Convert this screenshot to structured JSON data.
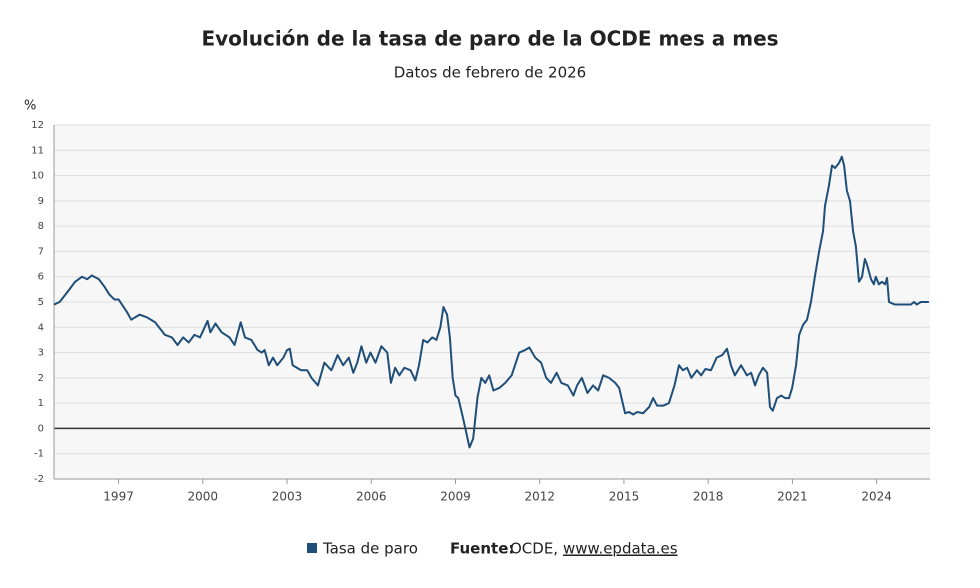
{
  "chart_data": {
    "type": "line",
    "title": "Evolución de la tasa de paro de la OCDE mes a mes",
    "subtitle": "Datos de febrero de 2026",
    "y_label": "%",
    "source_label": "Fuente:",
    "source_text": "OCDE,",
    "source_link": "www.epdata.es",
    "xlim": [
      1994.7,
      2025.9
    ],
    "xticks": [
      1997,
      2000,
      2003,
      2006,
      2009,
      2012,
      2015,
      2018,
      2021,
      2024
    ],
    "ylim": [
      -2,
      12
    ],
    "yticks": [
      -2,
      -1,
      0,
      1,
      2,
      3,
      4,
      5,
      6,
      7,
      8,
      9,
      10,
      11,
      12
    ],
    "grid": true,
    "x": [
      1994.7,
      1994.9,
      1995.25,
      1995.45,
      1995.7,
      1995.88,
      1996.05,
      1996.3,
      1996.5,
      1996.67,
      1996.85,
      1997.0,
      1997.3,
      1997.45,
      1997.75,
      1998.0,
      1998.3,
      1998.65,
      1998.9,
      1999.1,
      1999.3,
      1999.5,
      1999.7,
      1999.9,
      2000.17,
      2000.27,
      2000.45,
      2000.67,
      2000.95,
      2001.13,
      2001.35,
      2001.5,
      2001.73,
      2001.95,
      2002.1,
      2002.2,
      2002.35,
      2002.5,
      2002.65,
      2002.87,
      2003.0,
      2003.1,
      2003.2,
      2003.5,
      2003.72,
      2003.87,
      2004.1,
      2004.33,
      2004.58,
      2004.8,
      2005.0,
      2005.2,
      2005.36,
      2005.5,
      2005.65,
      2005.82,
      2005.97,
      2006.15,
      2006.36,
      2006.57,
      2006.7,
      2006.85,
      2007.0,
      2007.18,
      2007.4,
      2007.57,
      2007.7,
      2007.85,
      2008.0,
      2008.17,
      2008.32,
      2008.46,
      2008.57,
      2008.7,
      2008.8,
      2008.9,
      2009.0,
      2009.1,
      2009.25,
      2009.35,
      2009.5,
      2009.63,
      2009.78,
      2009.92,
      2010.06,
      2010.2,
      2010.35,
      2010.56,
      2010.77,
      2011.0,
      2011.27,
      2011.48,
      2011.63,
      2011.84,
      2012.05,
      2012.23,
      2012.4,
      2012.6,
      2012.77,
      2013.0,
      2013.2,
      2013.33,
      2013.5,
      2013.7,
      2013.9,
      2014.08,
      2014.26,
      2014.47,
      2014.69,
      2014.83,
      2015.04,
      2015.18,
      2015.33,
      2015.47,
      2015.68,
      2015.9,
      2016.04,
      2016.18,
      2016.4,
      2016.6,
      2016.8,
      2016.96,
      2017.1,
      2017.25,
      2017.4,
      2017.6,
      2017.75,
      2017.9,
      2018.1,
      2018.3,
      2018.5,
      2018.67,
      2018.81,
      2018.95,
      2019.17,
      2019.38,
      2019.53,
      2019.67,
      2019.8,
      2019.95,
      2020.1,
      2020.2,
      2020.3,
      2020.45,
      2020.6,
      2020.74,
      2020.88,
      2020.99,
      2021.13,
      2021.24,
      2021.38,
      2021.52,
      2021.66,
      2021.8,
      2021.95,
      2022.09,
      2022.16,
      2022.3,
      2022.41,
      2022.52,
      2022.66,
      2022.76,
      2022.84,
      2022.94,
      2023.05,
      2023.16,
      2023.26,
      2023.37,
      2023.48,
      2023.58,
      2023.65,
      2023.8,
      2023.9,
      2023.97,
      2024.08,
      2024.19,
      2024.3,
      2024.37,
      2024.44,
      2024.65,
      2025.22,
      2025.33,
      2025.43,
      2025.57,
      2025.86
    ],
    "series": [
      {
        "name": "Tasa de paro",
        "color": "#1f4e79",
        "values": [
          4.9,
          5.0,
          5.5,
          5.8,
          6.0,
          5.9,
          6.05,
          5.9,
          5.6,
          5.3,
          5.1,
          5.1,
          4.6,
          4.3,
          4.5,
          4.4,
          4.2,
          3.7,
          3.6,
          3.3,
          3.6,
          3.4,
          3.7,
          3.6,
          4.25,
          3.8,
          4.15,
          3.8,
          3.6,
          3.3,
          4.2,
          3.6,
          3.5,
          3.1,
          3.0,
          3.1,
          2.5,
          2.8,
          2.5,
          2.8,
          3.1,
          3.15,
          2.5,
          2.3,
          2.3,
          2.0,
          1.7,
          2.6,
          2.3,
          2.9,
          2.5,
          2.8,
          2.2,
          2.6,
          3.25,
          2.6,
          3.0,
          2.6,
          3.25,
          3.0,
          1.8,
          2.4,
          2.1,
          2.4,
          2.3,
          1.9,
          2.5,
          3.5,
          3.4,
          3.6,
          3.5,
          4.0,
          4.8,
          4.5,
          3.6,
          2.0,
          1.3,
          1.2,
          0.5,
          0.0,
          -0.75,
          -0.4,
          1.2,
          2.0,
          1.8,
          2.1,
          1.5,
          1.6,
          1.8,
          2.1,
          3.0,
          3.1,
          3.2,
          2.8,
          2.6,
          2.0,
          1.8,
          2.2,
          1.8,
          1.7,
          1.3,
          1.7,
          2.0,
          1.4,
          1.7,
          1.5,
          2.1,
          2.0,
          1.8,
          1.6,
          0.6,
          0.65,
          0.55,
          0.65,
          0.6,
          0.85,
          1.2,
          0.9,
          0.9,
          1.0,
          1.7,
          2.5,
          2.3,
          2.4,
          2.0,
          2.3,
          2.1,
          2.35,
          2.3,
          2.8,
          2.9,
          3.15,
          2.5,
          2.1,
          2.5,
          2.1,
          2.2,
          1.7,
          2.1,
          2.4,
          2.2,
          0.85,
          0.7,
          1.2,
          1.3,
          1.2,
          1.2,
          1.6,
          2.5,
          3.7,
          4.1,
          4.3,
          5.0,
          6.0,
          7.0,
          7.8,
          8.8,
          9.6,
          10.4,
          10.3,
          10.5,
          10.75,
          10.4,
          9.4,
          9.0,
          7.8,
          7.2,
          5.8,
          6.0,
          6.7,
          6.5,
          5.9,
          5.7,
          6.0,
          5.7,
          5.8,
          5.7,
          5.95,
          5.0,
          4.9,
          4.9,
          5.0,
          4.9,
          5.0,
          5.0
        ]
      }
    ]
  }
}
